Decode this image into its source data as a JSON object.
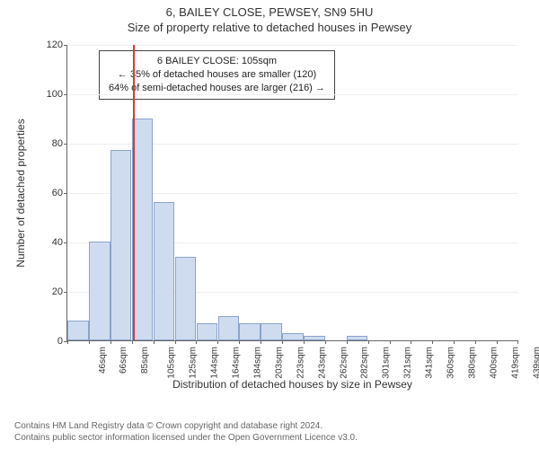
{
  "header": {
    "address": "6, BAILEY CLOSE, PEWSEY, SN9 5HU",
    "subtitle": "Size of property relative to detached houses in Pewsey"
  },
  "annotation": {
    "line1": "6 BAILEY CLOSE: 105sqm",
    "line2": "← 35% of detached houses are smaller (120)",
    "line3": "64% of semi-detached houses are larger (216) →"
  },
  "chart": {
    "type": "histogram",
    "y_label": "Number of detached properties",
    "x_label": "Distribution of detached houses by size in Pewsey",
    "ylim": [
      0,
      120
    ],
    "ytick_step": 20,
    "bar_fill": "#cfdcf0",
    "bar_stroke": "#8aa3c9",
    "grid_color": "#eeeeee",
    "axis_color": "#666666",
    "marker_color": "#d43a3a",
    "marker_x_index": 3.05,
    "label_fontsize": 12,
    "tick_fontsize": 11,
    "x_categories": [
      "46sqm",
      "66sqm",
      "85sqm",
      "105sqm",
      "125sqm",
      "144sqm",
      "164sqm",
      "184sqm",
      "203sqm",
      "223sqm",
      "243sqm",
      "262sqm",
      "282sqm",
      "301sqm",
      "321sqm",
      "341sqm",
      "360sqm",
      "380sqm",
      "400sqm",
      "419sqm",
      "439sqm"
    ],
    "values": [
      8,
      40,
      77,
      90,
      56,
      34,
      7,
      10,
      7,
      7,
      3,
      2,
      0,
      2,
      0,
      0,
      0,
      0,
      0,
      0,
      0
    ]
  },
  "footer": {
    "line1": "Contains HM Land Registry data © Crown copyright and database right 2024.",
    "line2": "Contains public sector information licensed under the Open Government Licence v3.0."
  }
}
